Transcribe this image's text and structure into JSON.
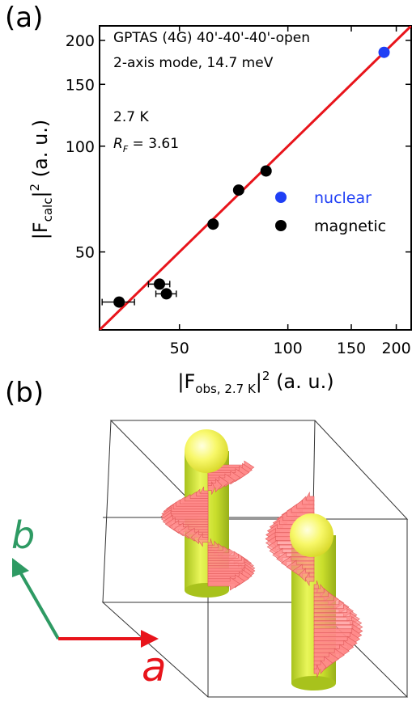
{
  "panel_labels": {
    "a": "(a)",
    "b": "(b)"
  },
  "chart_data": {
    "type": "scatter",
    "scale": "log-log",
    "xlim": [
      30,
      220
    ],
    "ylim": [
      30,
      220
    ],
    "x_ticks": [
      50,
      100,
      150,
      200
    ],
    "y_ticks": [
      50,
      100,
      150,
      200
    ],
    "x_tick_labels": [
      "50",
      "100",
      "150",
      "200"
    ],
    "y_tick_labels": [
      "50",
      "100",
      "150",
      "200"
    ],
    "xlabel": {
      "pre": "|F",
      "sub": "obs,  2.7 K",
      "post": "|",
      "sup": "2",
      "tail": " (a. u.)"
    },
    "ylabel": {
      "pre": "|F",
      "sub": "calc",
      "post": "|",
      "sup": "2",
      "tail": " (a. u.)"
    },
    "annotations": {
      "line1": "GPTAS (4G) 40'-40'-40'-open",
      "line2": "2-axis mode, 14.7 meV",
      "temperature": "2.7 K",
      "rf_symbol": "R",
      "rf_sub": "F",
      "rf_value": " = 3.61"
    },
    "reference_line": {
      "slope": 1,
      "color": "#e8141b"
    },
    "series": [
      {
        "name": "nuclear",
        "color": "#1f3ff5",
        "x": [
          185
        ],
        "y": [
          185
        ],
        "xerr": [
          0
        ],
        "yerr": [
          0
        ]
      },
      {
        "name": "magnetic",
        "color": "#000000",
        "x": [
          34,
          44,
          46,
          62,
          73,
          87
        ],
        "y": [
          36,
          40.5,
          38,
          60,
          75,
          85
        ],
        "xerr": [
          3.5,
          3.0,
          3.0,
          0,
          0,
          0
        ],
        "yerr": [
          0,
          0,
          0,
          0,
          0,
          0
        ]
      }
    ],
    "legend_position": "right"
  },
  "diagram_b": {
    "axis_a": "a",
    "axis_b": "b",
    "colors": {
      "a": "#e8141b",
      "b": "#2e9a63",
      "helix": "#ff8a8a",
      "cylinder": "#d6ea3a",
      "sphere": "#f6f66a"
    }
  }
}
